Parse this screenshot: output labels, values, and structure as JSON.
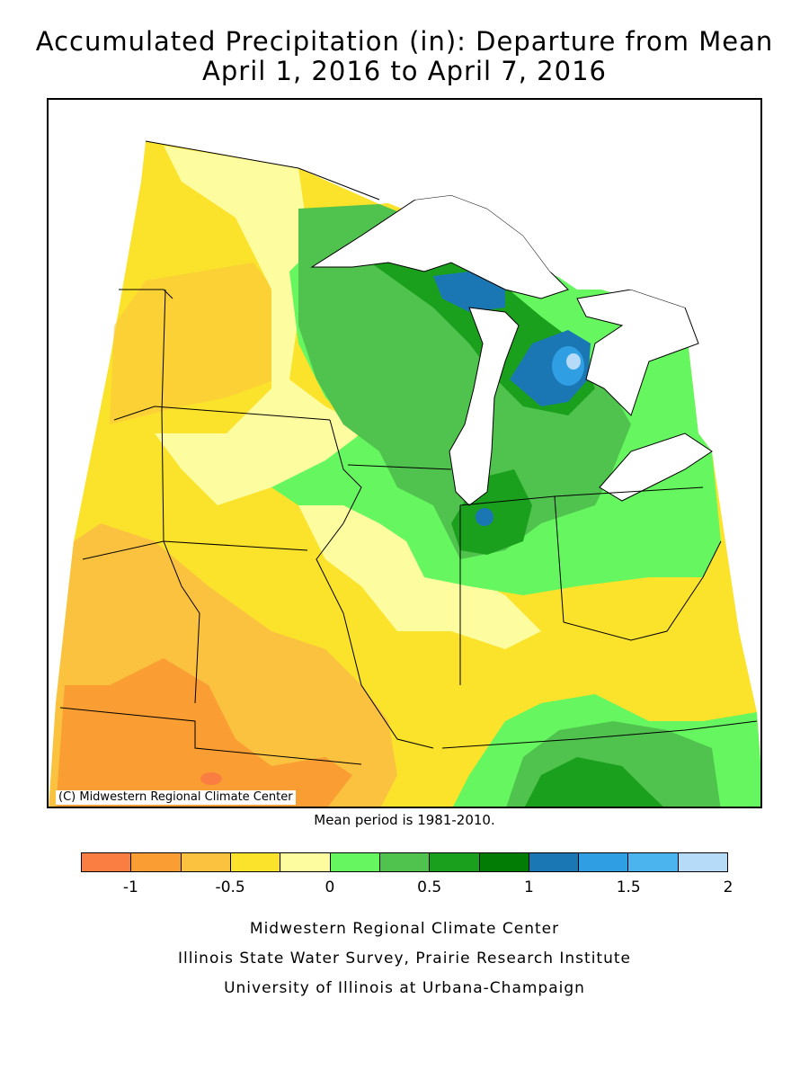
{
  "title": {
    "line1": "Accumulated Precipitation (in): Departure from Mean",
    "line2": "April 1, 2016 to April 7, 2016"
  },
  "map": {
    "copyright": "(C) Midwestern Regional Climate Center",
    "mean_period": "Mean period is 1981-2010."
  },
  "legend": {
    "colors": [
      "#fa7d41",
      "#fa9d32",
      "#fbc240",
      "#fbe22b",
      "#fdfd9f",
      "#66f760",
      "#50c24e",
      "#1aa01d",
      "#037c06",
      "#1a77b3",
      "#2f9ee3",
      "#4bb4ee",
      "#b5dbf8"
    ],
    "ticks": [
      "-1",
      "-0.5",
      "0",
      "0.5",
      "1",
      "1.5",
      "2"
    ]
  },
  "footer": {
    "line1": "Midwestern Regional Climate Center",
    "line2": "Illinois State Water Survey, Prairie Research Institute",
    "line3": "University of Illinois at Urbana-Champaign"
  }
}
